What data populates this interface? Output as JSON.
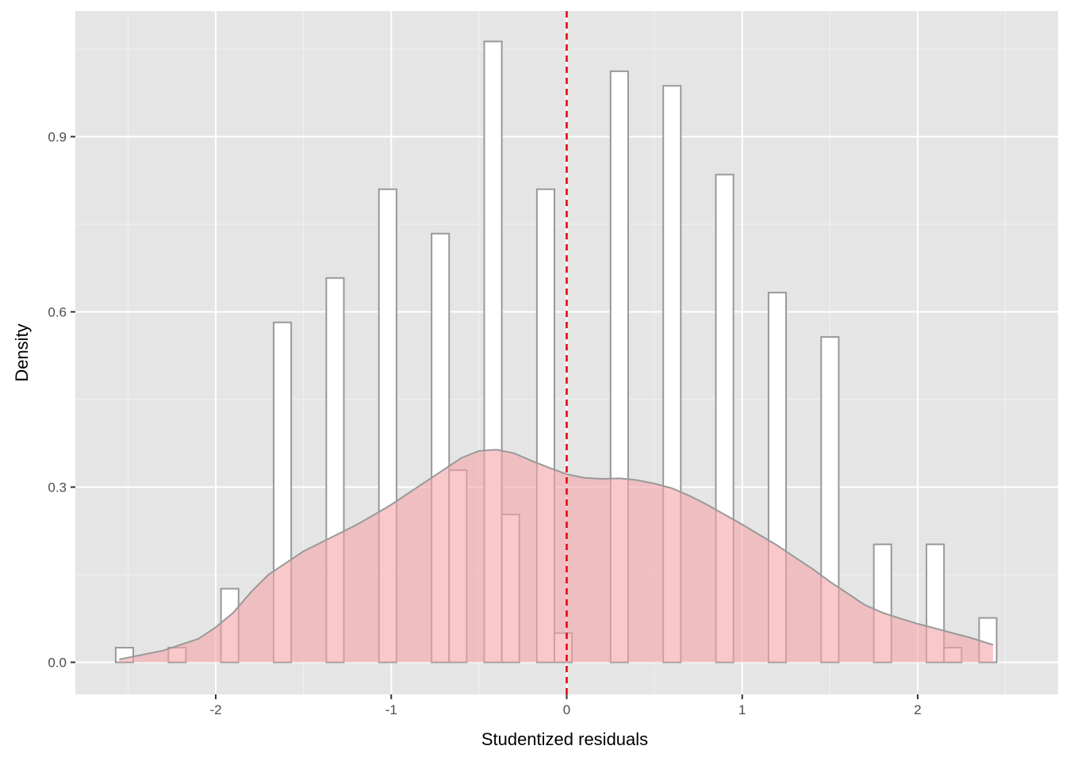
{
  "chart_data": {
    "type": "histogram-density",
    "xlabel": "Studentized residuals",
    "ylabel": "Density",
    "xlim": [
      -2.8,
      2.8
    ],
    "ylim": [
      -0.055,
      1.115
    ],
    "x_ticks": [
      -2,
      -1,
      0,
      1,
      2
    ],
    "x_tick_labels": [
      "-2",
      "-1",
      "0",
      "1",
      "2"
    ],
    "y_ticks": [
      0.0,
      0.3,
      0.6,
      0.9
    ],
    "y_tick_labels": [
      "0.0",
      "0.3",
      "0.6",
      "0.9"
    ],
    "grid": true,
    "bin_width": 0.1,
    "bins": [
      {
        "x0": -2.57,
        "density": 0.025
      },
      {
        "x0": -2.27,
        "density": 0.025
      },
      {
        "x0": -1.97,
        "density": 0.126
      },
      {
        "x0": -1.67,
        "density": 0.582
      },
      {
        "x0": -1.37,
        "density": 0.658
      },
      {
        "x0": -1.07,
        "density": 0.81
      },
      {
        "x0": -0.77,
        "density": 0.734
      },
      {
        "x0": -0.67,
        "density": 0.329
      },
      {
        "x0": -0.47,
        "density": 1.063
      },
      {
        "x0": -0.37,
        "density": 0.253
      },
      {
        "x0": -0.17,
        "density": 0.81
      },
      {
        "x0": -0.07,
        "density": 0.05
      },
      {
        "x0": 0.25,
        "density": 1.012
      },
      {
        "x0": 0.55,
        "density": 0.987
      },
      {
        "x0": 0.85,
        "density": 0.835
      },
      {
        "x0": 1.15,
        "density": 0.633
      },
      {
        "x0": 1.45,
        "density": 0.557
      },
      {
        "x0": 1.75,
        "density": 0.202
      },
      {
        "x0": 2.05,
        "density": 0.202
      },
      {
        "x0": 2.15,
        "density": 0.025
      },
      {
        "x0": 2.35,
        "density": 0.076
      }
    ],
    "density_curve": {
      "x": [
        -2.55,
        -2.3,
        -2.1,
        -2.0,
        -1.9,
        -1.8,
        -1.7,
        -1.6,
        -1.5,
        -1.4,
        -1.3,
        -1.2,
        -1.1,
        -1.0,
        -0.9,
        -0.8,
        -0.7,
        -0.6,
        -0.5,
        -0.4,
        -0.3,
        -0.2,
        -0.1,
        0.0,
        0.1,
        0.2,
        0.3,
        0.4,
        0.5,
        0.6,
        0.7,
        0.8,
        0.9,
        1.0,
        1.1,
        1.2,
        1.3,
        1.4,
        1.5,
        1.6,
        1.7,
        1.8,
        1.9,
        2.0,
        2.1,
        2.2,
        2.3,
        2.43
      ],
      "y": [
        0.005,
        0.02,
        0.04,
        0.06,
        0.085,
        0.12,
        0.15,
        0.17,
        0.19,
        0.205,
        0.22,
        0.235,
        0.252,
        0.27,
        0.29,
        0.31,
        0.33,
        0.35,
        0.362,
        0.364,
        0.358,
        0.345,
        0.333,
        0.322,
        0.316,
        0.314,
        0.315,
        0.312,
        0.306,
        0.298,
        0.285,
        0.27,
        0.253,
        0.236,
        0.218,
        0.2,
        0.18,
        0.16,
        0.138,
        0.118,
        0.098,
        0.085,
        0.075,
        0.066,
        0.058,
        0.05,
        0.042,
        0.03
      ]
    },
    "reference_line": {
      "x": 0,
      "style": "dashed",
      "color": "#e8000b"
    },
    "colors": {
      "panel_background": "#e5e5e5",
      "grid_major": "#ffffff",
      "grid_minor": "#f2f2f2",
      "bar_fill": "#ffffff",
      "bar_stroke": "#999999",
      "density_fill": "#f4a3a8",
      "density_stroke": "#999999"
    }
  }
}
